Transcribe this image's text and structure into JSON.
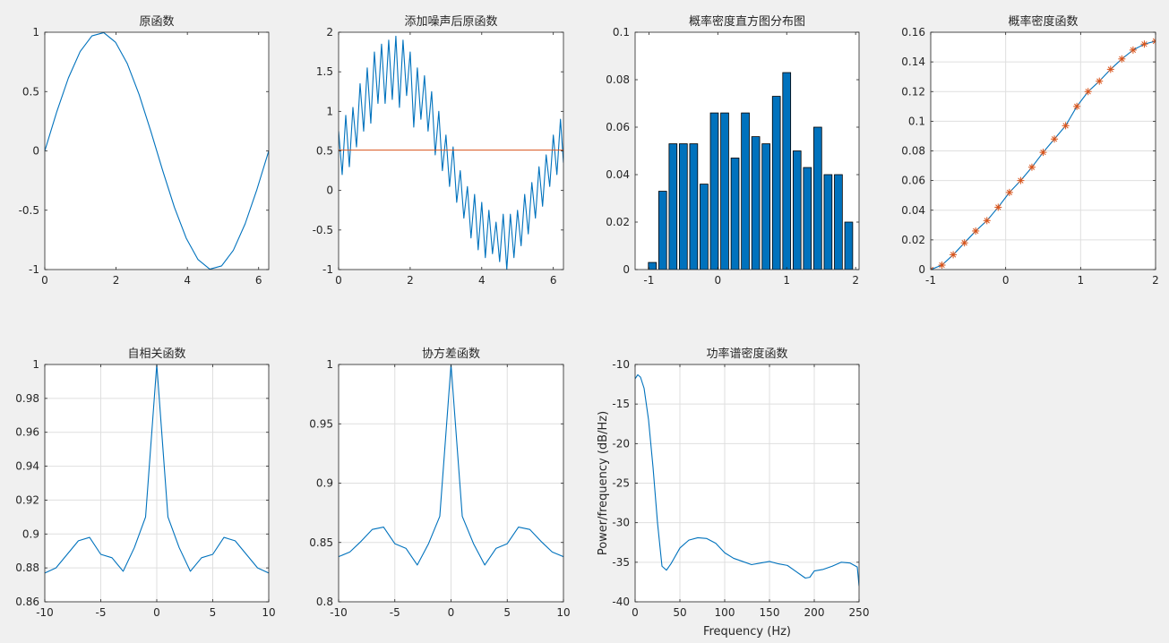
{
  "figure": {
    "background": "#f0f0f0",
    "axes_background": "#ffffff",
    "grid_color": "#dfdfdf",
    "axis_color": "#262626",
    "line_color": "#0072bd",
    "accent_color": "#d95319"
  },
  "chart_data": [
    {
      "type": "line",
      "title": "原函数",
      "xlabel": "",
      "ylabel": "",
      "xlim": [
        0,
        6.2832
      ],
      "ylim": [
        -1,
        1
      ],
      "xticks": [
        0,
        2,
        4,
        6
      ],
      "yticks": [
        -1,
        -0.5,
        0,
        0.5,
        1
      ],
      "xtick_labels": [
        "0",
        "2",
        "4",
        "6"
      ],
      "ytick_labels": [
        "-1",
        "-0.5",
        "0",
        "0.5",
        "1"
      ],
      "grid": false,
      "series": [
        {
          "style": "line",
          "x": [
            0,
            0.3307,
            0.6614,
            0.992,
            1.3227,
            1.6534,
            1.9841,
            2.3148,
            2.6454,
            2.9761,
            3.3068,
            3.6375,
            3.9682,
            4.2988,
            4.6295,
            4.9602,
            5.2909,
            5.6216,
            5.9522,
            6.2832
          ],
          "y": [
            0,
            0.3247,
            0.6142,
            0.8372,
            0.9694,
            0.9966,
            0.9158,
            0.7357,
            0.4759,
            0.1646,
            -0.1646,
            -0.4759,
            -0.7357,
            -0.9158,
            -0.9966,
            -0.9694,
            -0.8372,
            -0.6142,
            -0.3247,
            0
          ]
        }
      ]
    },
    {
      "type": "line",
      "title": "添加噪声后原函数",
      "xlabel": "",
      "ylabel": "",
      "xlim": [
        0,
        6.2832
      ],
      "ylim": [
        -1,
        2
      ],
      "xticks": [
        0,
        2,
        4,
        6
      ],
      "yticks": [
        -1,
        -0.5,
        0,
        0.5,
        1,
        1.5,
        2
      ],
      "xtick_labels": [
        "0",
        "2",
        "4",
        "6"
      ],
      "ytick_labels": [
        "-1",
        "-0.5",
        "0",
        "0.5",
        "1",
        "1.5",
        "2"
      ],
      "grid": false,
      "series": [
        {
          "style": "line",
          "x": [
            0,
            0.1,
            0.2,
            0.3,
            0.4,
            0.5,
            0.6,
            0.7,
            0.8,
            0.9,
            1.0,
            1.1,
            1.2,
            1.3,
            1.4,
            1.5,
            1.6,
            1.7,
            1.8,
            1.9,
            2.0,
            2.1,
            2.2,
            2.3,
            2.4,
            2.5,
            2.6,
            2.7,
            2.8,
            2.9,
            3.0,
            3.1,
            3.2,
            3.3,
            3.4,
            3.5,
            3.6,
            3.7,
            3.8,
            3.9,
            4.0,
            4.1,
            4.2,
            4.3,
            4.4,
            4.5,
            4.6,
            4.7,
            4.8,
            4.9,
            5.0,
            5.1,
            5.2,
            5.3,
            5.4,
            5.5,
            5.6,
            5.7,
            5.8,
            5.9,
            6.0,
            6.1,
            6.2,
            6.2832
          ],
          "y": [
            0.75,
            0.2,
            0.95,
            0.3,
            1.05,
            0.55,
            1.35,
            0.75,
            1.55,
            0.85,
            1.75,
            1.1,
            1.85,
            1.1,
            1.9,
            1.15,
            1.95,
            1.05,
            1.9,
            1.2,
            1.75,
            0.8,
            1.55,
            0.9,
            1.45,
            0.75,
            1.25,
            0.45,
            1.0,
            0.25,
            0.7,
            0.05,
            0.55,
            -0.15,
            0.25,
            -0.35,
            0.05,
            -0.6,
            -0.05,
            -0.75,
            -0.15,
            -0.85,
            -0.25,
            -0.8,
            -0.4,
            -0.9,
            -0.3,
            -1.0,
            -0.3,
            -0.85,
            -0.25,
            -0.7,
            -0.05,
            -0.55,
            0.1,
            -0.35,
            0.3,
            -0.2,
            0.45,
            0.05,
            0.7,
            0.2,
            0.9,
            0.35
          ]
        },
        {
          "style": "hline",
          "color": "#d95319",
          "x": [
            0,
            6.2832
          ],
          "y": [
            0.51,
            0.51
          ]
        }
      ]
    },
    {
      "type": "bar",
      "title": "概率密度直方图分布图",
      "xlabel": "",
      "ylabel": "",
      "xlim": [
        -1.2,
        2.05
      ],
      "ylim": [
        0,
        0.1
      ],
      "xticks": [
        -1,
        0,
        1,
        2
      ],
      "yticks": [
        0,
        0.02,
        0.04,
        0.06,
        0.08,
        0.1
      ],
      "xtick_labels": [
        "-1",
        "0",
        "1",
        "2"
      ],
      "ytick_labels": [
        "0",
        "0.02",
        "0.04",
        "0.06",
        "0.08",
        "0.1"
      ],
      "grid": false,
      "bar_width": 0.115,
      "categories": [
        -0.95,
        -0.8,
        -0.65,
        -0.5,
        -0.35,
        -0.2,
        -0.05,
        0.1,
        0.25,
        0.4,
        0.55,
        0.7,
        0.85,
        1.0,
        1.15,
        1.3,
        1.45,
        1.6,
        1.75,
        1.9
      ],
      "values": [
        0.003,
        0.033,
        0.053,
        0.053,
        0.053,
        0.036,
        0.066,
        0.066,
        0.047,
        0.066,
        0.056,
        0.053,
        0.073,
        0.083,
        0.05,
        0.043,
        0.06,
        0.04,
        0.04,
        0.02
      ]
    },
    {
      "type": "line",
      "title": "概率密度函数",
      "xlabel": "",
      "ylabel": "",
      "xlim": [
        -1,
        2
      ],
      "ylim": [
        0,
        0.16
      ],
      "xticks": [
        -1,
        0,
        1,
        2
      ],
      "yticks": [
        0,
        0.02,
        0.04,
        0.06,
        0.08,
        0.1,
        0.12,
        0.14,
        0.16
      ],
      "xtick_labels": [
        "-1",
        "0",
        "1",
        "2"
      ],
      "ytick_labels": [
        "0",
        "0.02",
        "0.04",
        "0.06",
        "0.08",
        "0.1",
        "0.12",
        "0.14",
        "0.16"
      ],
      "grid": true,
      "series": [
        {
          "style": "line+star",
          "x": [
            -1,
            -0.85,
            -0.7,
            -0.55,
            -0.4,
            -0.25,
            -0.1,
            0.05,
            0.2,
            0.35,
            0.5,
            0.65,
            0.8,
            0.95,
            1.1,
            1.25,
            1.4,
            1.55,
            1.7,
            1.85,
            2.0
          ],
          "y": [
            0,
            0.003,
            0.01,
            0.018,
            0.026,
            0.033,
            0.042,
            0.052,
            0.06,
            0.069,
            0.079,
            0.088,
            0.097,
            0.11,
            0.12,
            0.127,
            0.135,
            0.142,
            0.148,
            0.152,
            0.154
          ]
        }
      ]
    },
    {
      "type": "line",
      "title": "自相关函数",
      "xlabel": "",
      "ylabel": "",
      "xlim": [
        -10,
        10
      ],
      "ylim": [
        0.86,
        1
      ],
      "xticks": [
        -10,
        -5,
        0,
        5,
        10
      ],
      "yticks": [
        0.86,
        0.88,
        0.9,
        0.92,
        0.94,
        0.96,
        0.98,
        1
      ],
      "xtick_labels": [
        "-10",
        "-5",
        "0",
        "5",
        "10"
      ],
      "ytick_labels": [
        "0.86",
        "0.88",
        "0.9",
        "0.92",
        "0.94",
        "0.96",
        "0.98",
        "1"
      ],
      "grid": true,
      "series": [
        {
          "style": "line",
          "x": [
            -10,
            -9,
            -8,
            -7,
            -6,
            -5,
            -4,
            -3,
            -2,
            -1,
            0,
            1,
            2,
            3,
            4,
            5,
            6,
            7,
            8,
            9,
            10
          ],
          "y": [
            0.877,
            0.88,
            0.888,
            0.896,
            0.898,
            0.888,
            0.886,
            0.878,
            0.892,
            0.91,
            1.0,
            0.91,
            0.892,
            0.878,
            0.886,
            0.888,
            0.898,
            0.896,
            0.888,
            0.88,
            0.877
          ]
        }
      ]
    },
    {
      "type": "line",
      "title": "协方差函数",
      "xlabel": "",
      "ylabel": "",
      "xlim": [
        -10,
        10
      ],
      "ylim": [
        0.8,
        1
      ],
      "xticks": [
        -10,
        -5,
        0,
        5,
        10
      ],
      "yticks": [
        0.8,
        0.85,
        0.9,
        0.95,
        1
      ],
      "xtick_labels": [
        "-10",
        "-5",
        "0",
        "5",
        "10"
      ],
      "ytick_labels": [
        "0.8",
        "0.85",
        "0.9",
        "0.95",
        "1"
      ],
      "grid": true,
      "series": [
        {
          "style": "line",
          "x": [
            -10,
            -9,
            -8,
            -7,
            -6,
            -5,
            -4,
            -3,
            -2,
            -1,
            0,
            1,
            2,
            3,
            4,
            5,
            6,
            7,
            8,
            9,
            10
          ],
          "y": [
            0.838,
            0.842,
            0.851,
            0.861,
            0.863,
            0.849,
            0.845,
            0.831,
            0.849,
            0.872,
            1.0,
            0.872,
            0.849,
            0.831,
            0.845,
            0.849,
            0.863,
            0.861,
            0.851,
            0.842,
            0.838
          ]
        }
      ]
    },
    {
      "type": "line",
      "title": "功率谱密度函数",
      "xlabel": "Frequency (Hz)",
      "ylabel": "Power/frequency (dB/Hz)",
      "xlim": [
        0,
        250
      ],
      "ylim": [
        -40,
        -10
      ],
      "xticks": [
        0,
        50,
        100,
        150,
        200,
        250
      ],
      "yticks": [
        -40,
        -35,
        -30,
        -25,
        -20,
        -15,
        -10
      ],
      "xtick_labels": [
        "0",
        "50",
        "100",
        "150",
        "200",
        "250"
      ],
      "ytick_labels": [
        "-40",
        "-35",
        "-30",
        "-25",
        "-20",
        "-15",
        "-10"
      ],
      "grid": true,
      "series": [
        {
          "style": "line",
          "x": [
            0,
            3,
            6,
            10,
            15,
            20,
            25,
            30,
            35,
            40,
            50,
            60,
            70,
            80,
            90,
            100,
            110,
            120,
            130,
            140,
            150,
            160,
            170,
            180,
            190,
            195,
            200,
            210,
            220,
            230,
            240,
            248,
            250
          ],
          "y": [
            -11.8,
            -11.3,
            -11.6,
            -13.0,
            -17.0,
            -23.0,
            -30.0,
            -35.5,
            -36.0,
            -35.2,
            -33.2,
            -32.2,
            -31.9,
            -32.0,
            -32.6,
            -33.8,
            -34.5,
            -34.9,
            -35.3,
            -35.1,
            -34.9,
            -35.2,
            -35.4,
            -36.2,
            -37.0,
            -36.9,
            -36.1,
            -35.9,
            -35.5,
            -35.0,
            -35.1,
            -35.6,
            -38.0
          ]
        }
      ]
    }
  ]
}
